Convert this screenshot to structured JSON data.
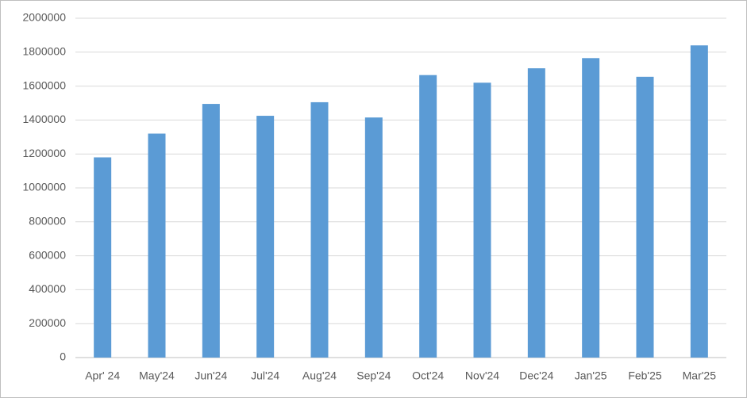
{
  "chart_data": {
    "type": "bar",
    "categories": [
      "Apr' 24",
      "May'24",
      "Jun'24",
      "Jul'24",
      "Aug'24",
      "Sep'24",
      "Oct'24",
      "Nov'24",
      "Dec'24",
      "Jan'25",
      "Feb'25",
      "Mar'25"
    ],
    "values": [
      1180000,
      1320000,
      1495000,
      1425000,
      1505000,
      1415000,
      1665000,
      1620000,
      1705000,
      1765000,
      1655000,
      1840000
    ],
    "color": "#5b9bd5",
    "ylim": [
      0,
      2000000
    ],
    "yticks": [
      0,
      200000,
      400000,
      600000,
      800000,
      1000000,
      1200000,
      1400000,
      1600000,
      1800000,
      2000000
    ],
    "grid": true
  }
}
